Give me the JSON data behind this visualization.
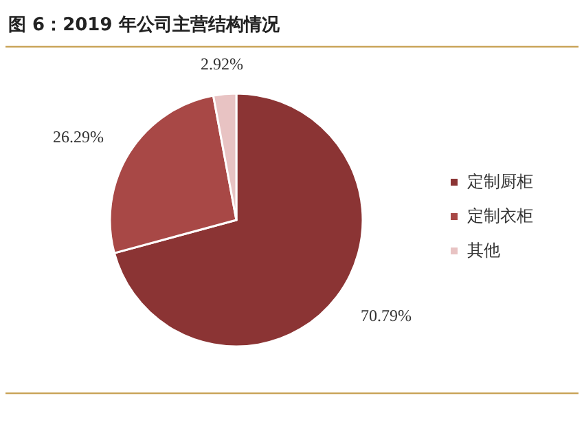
{
  "chart_data": {
    "type": "pie",
    "title": "图 6：2019 年公司主营结构情况",
    "categories": [
      "定制厨柜",
      "定制衣柜",
      "其他"
    ],
    "values": [
      70.79,
      26.29,
      2.92
    ],
    "colors": [
      "#8b3434",
      "#a84846",
      "#e8c3c3"
    ],
    "value_labels": [
      "70.79%",
      "26.29%",
      "2.92%"
    ],
    "legend": "right"
  }
}
